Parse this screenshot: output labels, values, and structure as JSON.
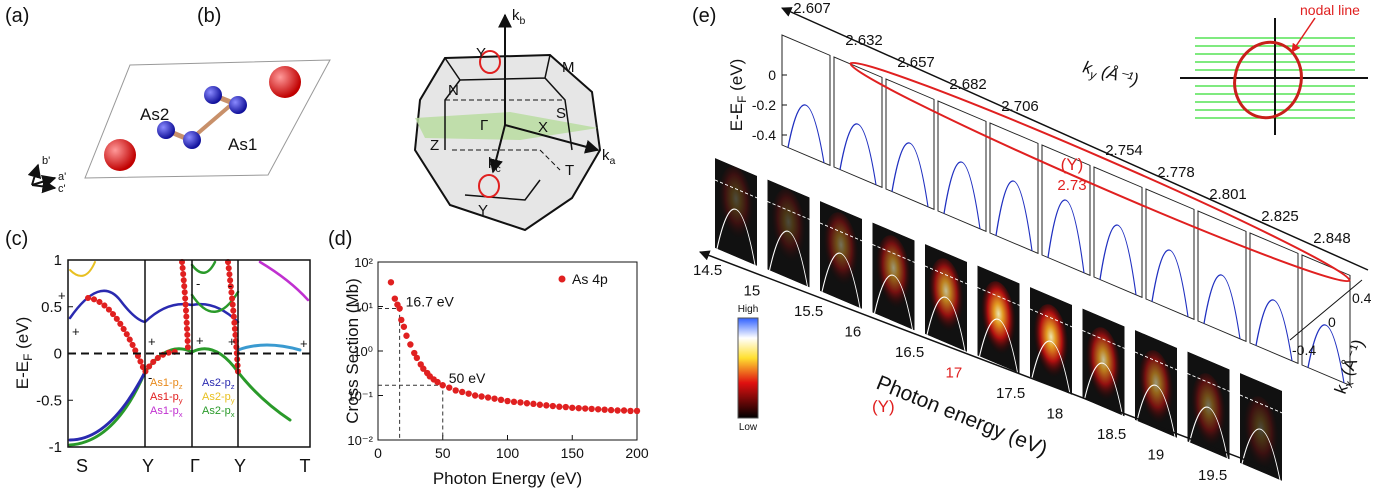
{
  "panel_a": {
    "label": "(a)",
    "atom_labels": [
      "As2",
      "As1"
    ],
    "axes": [
      "b'",
      "a'",
      "c'"
    ]
  },
  "panel_b": {
    "label": "(b)",
    "axes": [
      {
        "base": "k",
        "sub": "b"
      },
      {
        "base": "k",
        "sub": "a"
      },
      {
        "base": "k",
        "sub": "c"
      }
    ],
    "points": [
      "Y",
      "M",
      "N",
      "S",
      "Γ",
      "X",
      "Z",
      "T",
      "Y"
    ]
  },
  "panel_c": {
    "label": "(c)",
    "ylabel": {
      "base": "E-E",
      "sub": "F",
      "unit": " (eV)"
    },
    "ylim": [
      -1,
      1
    ],
    "yticks": [
      -1,
      -0.5,
      0,
      0.5,
      1
    ],
    "xticks": [
      "S",
      "Y",
      "Γ",
      "Y",
      "T"
    ],
    "legend": [
      {
        "base": "As1-p",
        "sub": "z",
        "color": "#e8891a"
      },
      {
        "base": "As2-p",
        "sub": "z",
        "color": "#2a2ab0"
      },
      {
        "base": "As1-p",
        "sub": "y",
        "color": "#e02020"
      },
      {
        "base": "As2-p",
        "sub": "y",
        "color": "#e8c020"
      },
      {
        "base": "As1-p",
        "sub": "x",
        "color": "#c030d0"
      },
      {
        "base": "As2-p",
        "sub": "x",
        "color": "#2a9a2a"
      }
    ],
    "parity": [
      "+",
      "+",
      "-",
      "+",
      "-",
      "+",
      "-",
      "+",
      "+"
    ]
  },
  "panel_d": {
    "label": "(d)",
    "chart_data": {
      "type": "scatter",
      "ylabel": "Cross Section (Mb)",
      "xlabel": "Photon Energy (eV)",
      "xlim": [
        0,
        200
      ],
      "xticks": [
        0,
        50,
        100,
        150,
        200
      ],
      "ylim": [
        0.01,
        100
      ],
      "yscale": "log",
      "yticks": [
        {
          "value": 0.01,
          "label": "10⁻²"
        },
        {
          "value": 0.1,
          "label": "10⁻¹"
        },
        {
          "value": 1,
          "label": "10⁰"
        },
        {
          "value": 10,
          "label": "10¹"
        },
        {
          "value": 100,
          "label": "10²"
        }
      ],
      "series": [
        {
          "name": "As 4p",
          "color": "#e02020",
          "x": [
            10,
            13,
            15,
            16.7,
            18,
            20,
            22,
            25,
            28,
            30,
            33,
            35,
            38,
            40,
            43,
            46,
            50,
            55,
            60,
            65,
            70,
            75,
            80,
            85,
            90,
            95,
            100,
            105,
            110,
            115,
            120,
            125,
            130,
            135,
            140,
            145,
            150,
            155,
            160,
            165,
            170,
            175,
            180,
            185,
            190,
            195,
            200
          ],
          "values": [
            35,
            15,
            11,
            9,
            5,
            3.5,
            2.2,
            1.4,
            0.9,
            0.7,
            0.5,
            0.4,
            0.32,
            0.27,
            0.23,
            0.2,
            0.17,
            0.15,
            0.13,
            0.12,
            0.11,
            0.1,
            0.095,
            0.09,
            0.085,
            0.08,
            0.075,
            0.072,
            0.07,
            0.067,
            0.065,
            0.062,
            0.06,
            0.058,
            0.056,
            0.055,
            0.053,
            0.052,
            0.051,
            0.05,
            0.049,
            0.048,
            0.047,
            0.046,
            0.046,
            0.045,
            0.045
          ]
        }
      ],
      "annotations": [
        {
          "x": 16.7,
          "y": 9,
          "label": "16.7 eV"
        },
        {
          "x": 50,
          "y": 0.17,
          "label": "50 eV"
        }
      ]
    }
  },
  "panel_e": {
    "label": "(e)",
    "ylabel": {
      "base": "E-E",
      "sub": "F",
      "unit": " (eV)"
    },
    "yticks": [
      0,
      -0.2,
      -0.4
    ],
    "ky_values": [
      2.607,
      2.632,
      2.657,
      2.682,
      2.706,
      2.73,
      2.754,
      2.778,
      2.801,
      2.825,
      2.848
    ],
    "ky_label": {
      "base": "k",
      "sub": "y",
      "unit": " (Å⁻¹)"
    },
    "photon_energies": [
      14.5,
      15,
      15.5,
      16,
      16.5,
      17,
      17.5,
      18,
      18.5,
      19,
      19.5
    ],
    "xlabel": "Photon energy (eV)",
    "marker": "(Y)",
    "red_index": 5,
    "red_color": "#e02020",
    "kx_ticks": [
      0.4,
      0,
      -0.4
    ],
    "kx_label": {
      "base": "k",
      "sub": "x",
      "unit": " (Å⁻¹)"
    },
    "colorbar": [
      "High",
      "Low"
    ],
    "inset_label": "nodal line"
  }
}
